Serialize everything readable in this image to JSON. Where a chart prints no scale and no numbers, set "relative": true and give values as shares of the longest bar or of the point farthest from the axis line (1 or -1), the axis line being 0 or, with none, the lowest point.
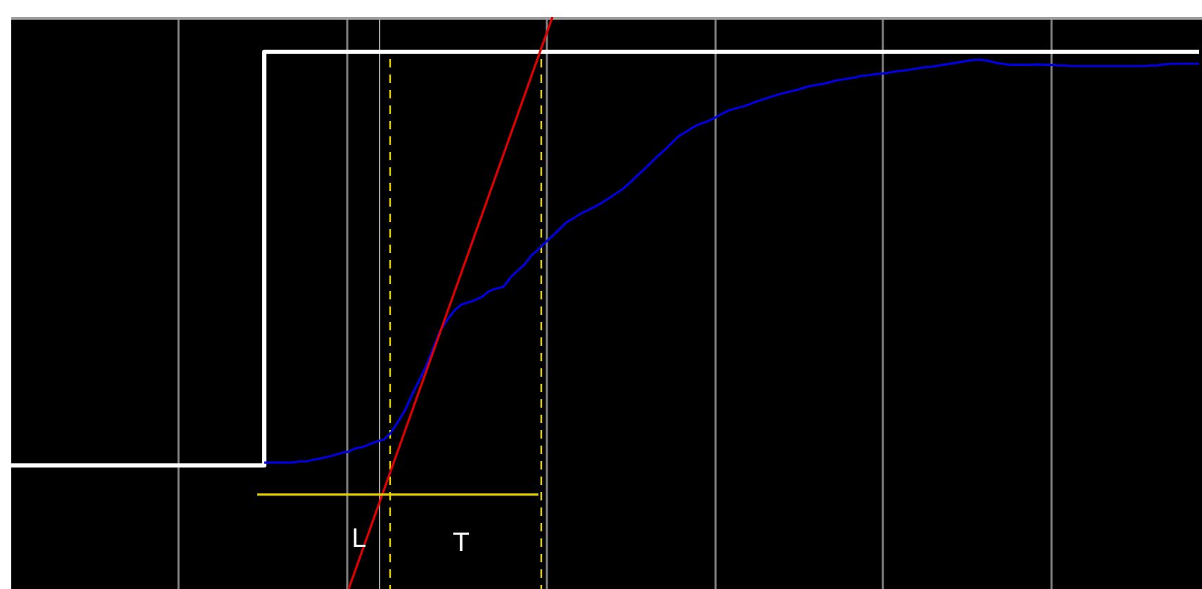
{
  "chart_data": {
    "type": "line",
    "relative": true,
    "marker": "none",
    "categories": [
      null,
      null,
      null,
      null,
      null,
      null,
      null,
      null,
      null,
      null,
      null,
      null,
      null,
      null,
      null,
      null,
      null,
      null,
      null,
      null,
      null,
      null,
      null,
      null,
      null,
      null,
      null,
      null,
      null,
      null,
      null,
      null,
      null,
      null,
      null,
      null,
      null,
      null,
      null,
      null,
      null,
      null,
      null,
      null,
      null,
      null,
      null,
      null,
      null,
      null,
      null,
      null,
      null,
      null,
      null,
      null,
      null,
      null,
      null,
      null,
      null,
      null,
      null,
      null,
      null,
      null,
      null,
      null,
      null,
      null,
      null,
      null,
      null,
      null,
      null,
      null,
      null,
      null,
      null,
      null,
      null,
      null,
      null,
      null,
      null,
      null,
      null,
      null,
      null,
      null,
      null,
      null,
      null,
      null,
      null,
      null,
      null,
      null,
      null,
      null,
      null,
      null,
      null,
      null,
      null,
      null,
      null,
      null,
      null,
      null,
      null,
      null,
      null,
      null,
      null,
      null,
      null,
      null,
      null,
      null,
      null,
      null,
      null,
      null,
      null,
      null,
      null,
      null,
      null,
      null,
      null,
      null,
      null,
      null,
      null,
      null,
      null,
      null,
      null,
      null,
      null,
      null,
      null,
      null,
      null,
      null,
      null,
      null,
      null,
      null,
      null,
      null,
      null,
      null,
      null,
      null,
      null,
      null,
      null,
      null,
      null,
      null,
      null,
      null,
      null,
      null,
      null,
      null,
      null,
      null
    ],
    "series": [
      {
        "type": "step",
        "color": "#ffffff",
        "values": [
          0.216,
          0.216,
          0.216,
          0.216,
          0.216,
          0.216,
          0.216,
          0.216,
          0.216,
          0.216,
          0.216,
          0.216,
          0.216,
          0.216,
          0.216,
          0.216,
          0.216,
          0.216,
          0.216,
          0.216,
          0.216,
          0.216,
          0.216,
          0.216,
          0.216,
          0.216,
          0.216,
          0.216,
          0.216,
          0.216,
          0.216,
          0.216,
          0.216,
          0.216,
          0.216,
          0.216,
          0.939,
          0.939,
          0.939,
          0.939,
          0.939,
          0.939,
          0.939,
          0.939,
          0.939,
          0.939,
          0.939,
          0.939,
          0.939,
          0.939,
          0.939,
          0.939,
          0.939,
          0.939,
          0.939,
          0.939,
          0.939,
          0.939,
          0.939,
          0.939,
          0.939,
          0.939,
          0.939,
          0.939,
          0.939,
          0.939,
          0.939,
          0.939,
          0.939,
          0.939,
          0.939,
          0.939,
          0.939,
          0.939,
          0.939,
          0.939,
          0.939,
          0.939,
          0.939,
          0.939,
          0.939,
          0.939,
          0.939,
          0.939,
          0.939,
          0.939,
          0.939,
          0.939,
          0.939,
          0.939,
          0.939,
          0.939,
          0.939,
          0.939,
          0.939,
          0.939,
          0.939,
          0.939,
          0.939,
          0.939,
          0.939,
          0.939,
          0.939,
          0.939,
          0.939,
          0.939,
          0.939,
          0.939,
          0.939,
          0.939,
          0.939,
          0.939,
          0.939,
          0.939,
          0.939,
          0.939,
          0.939,
          0.939,
          0.939,
          0.939,
          0.939,
          0.939,
          0.939,
          0.939,
          0.939,
          0.939,
          0.939,
          0.939,
          0.939,
          0.939,
          0.939,
          0.939,
          0.939,
          0.939,
          0.939,
          0.939,
          0.939,
          0.939,
          0.939,
          0.939,
          0.939,
          0.939,
          0.939,
          0.939,
          0.939,
          0.939,
          0.939,
          0.939,
          0.939,
          0.939,
          0.939,
          0.939,
          0.939,
          0.939,
          0.939,
          0.939,
          0.939,
          0.939,
          0.939,
          0.939,
          0.939,
          0.939,
          0.939,
          0.939,
          0.939,
          0.939,
          0.939,
          0.939,
          0.939,
          0.939
        ]
      },
      {
        "color": "#0000e0",
        "values": [
          null,
          null,
          null,
          null,
          null,
          null,
          null,
          null,
          null,
          null,
          null,
          null,
          null,
          null,
          null,
          null,
          null,
          null,
          null,
          null,
          null,
          null,
          null,
          null,
          null,
          null,
          null,
          null,
          null,
          null,
          null,
          null,
          null,
          null,
          null,
          null,
          0.221,
          0.221,
          0.221,
          0.221,
          0.221,
          0.223,
          0.223,
          0.226,
          0.228,
          0.231,
          0.234,
          0.238,
          0.24,
          0.246,
          0.248,
          0.253,
          0.258,
          0.261,
          0.273,
          0.292,
          0.312,
          0.339,
          0.364,
          0.389,
          0.42,
          0.451,
          0.47,
          0.486,
          0.497,
          0.501,
          0.505,
          0.511,
          0.521,
          0.525,
          0.528,
          0.544,
          0.556,
          0.567,
          0.583,
          0.594,
          0.606,
          0.617,
          0.629,
          0.641,
          0.648,
          0.656,
          0.662,
          0.668,
          0.675,
          0.683,
          0.691,
          0.699,
          0.71,
          0.722,
          0.733,
          0.745,
          0.757,
          0.768,
          0.78,
          0.792,
          0.799,
          0.807,
          0.813,
          0.817,
          0.823,
          0.83,
          0.836,
          0.84,
          0.843,
          0.847,
          0.852,
          0.856,
          0.86,
          0.864,
          0.867,
          0.87,
          0.873,
          0.877,
          0.88,
          0.882,
          0.884,
          0.888,
          0.89,
          0.892,
          0.894,
          0.897,
          0.898,
          0.9,
          0.901,
          0.903,
          0.905,
          0.906,
          0.908,
          0.91,
          0.912,
          0.913,
          0.915,
          0.917,
          0.919,
          0.921,
          0.923,
          0.925,
          0.925,
          0.923,
          0.92,
          0.918,
          0.916,
          0.916,
          0.916,
          0.916,
          0.917,
          0.916,
          0.916,
          0.915,
          0.915,
          0.914,
          0.914,
          0.914,
          0.914,
          0.914,
          0.914,
          0.914,
          0.914,
          0.914,
          0.914,
          0.914,
          0.915,
          0.915,
          0.917,
          0.918,
          0.918,
          0.918,
          0.918,
          0.918
        ]
      },
      {
        "color": "#e00000",
        "values": [
          null,
          null,
          null,
          null,
          null,
          null,
          null,
          null,
          null,
          null,
          null,
          null,
          null,
          null,
          null,
          null,
          null,
          null,
          null,
          null,
          null,
          null,
          null,
          null,
          null,
          null,
          null,
          null,
          null,
          null,
          null,
          null,
          null,
          null,
          null,
          null,
          null,
          null,
          null,
          null,
          null,
          null,
          null,
          null,
          null,
          null,
          null,
          null,
          0,
          null,
          null,
          null,
          null,
          null,
          null,
          null,
          null,
          null,
          null,
          null,
          null,
          null,
          null,
          null,
          null,
          null,
          null,
          null,
          null,
          null,
          null,
          null,
          null,
          null,
          null,
          null,
          null,
          1,
          null,
          null,
          null,
          null,
          null,
          null,
          null,
          null,
          null,
          null,
          null,
          null,
          null,
          null,
          null,
          null,
          null,
          null,
          null,
          null,
          null,
          null,
          null,
          null,
          null,
          null,
          null,
          null,
          null,
          null,
          null,
          null,
          null,
          null,
          null,
          null,
          null,
          null,
          null,
          null,
          null,
          null,
          null,
          null,
          null,
          null,
          null,
          null,
          null,
          null,
          null,
          null,
          null,
          null,
          null,
          null,
          null,
          null,
          null,
          null,
          null,
          null,
          null,
          null,
          null,
          null,
          null,
          null,
          null,
          null,
          null,
          null,
          null,
          null,
          null,
          null,
          null,
          null,
          null,
          null,
          null,
          null,
          null,
          null,
          null,
          null,
          null,
          null,
          null,
          null,
          null,
          null
        ]
      },
      {
        "color": "#e6d200",
        "values": [
          null,
          null,
          null,
          null,
          null,
          null,
          null,
          null,
          null,
          null,
          null,
          null,
          null,
          null,
          null,
          null,
          null,
          null,
          null,
          null,
          null,
          null,
          null,
          null,
          null,
          null,
          null,
          null,
          null,
          null,
          null,
          null,
          null,
          null,
          null,
          0.165,
          0.165,
          0.165,
          0.165,
          0.165,
          0.165,
          0.165,
          0.165,
          0.165,
          0.165,
          0.165,
          0.165,
          0.165,
          0.165,
          0.165,
          0.165,
          0.165,
          0.165,
          0.165,
          0.165,
          0.165,
          0.165,
          0.165,
          0.165,
          0.165,
          0.165,
          0.165,
          0.165,
          0.165,
          0.165,
          0.165,
          0.165,
          0.165,
          0.165,
          0.165,
          0.165,
          0.165,
          0.165,
          0.165,
          0.165,
          0.165,
          null,
          null,
          null,
          null,
          null,
          null,
          null,
          null,
          null,
          null,
          null,
          null,
          null,
          null,
          null,
          null,
          null,
          null,
          null,
          null,
          null,
          null,
          null,
          null,
          null,
          null,
          null,
          null,
          null,
          null,
          null,
          null,
          null,
          null,
          null,
          null,
          null,
          null,
          null,
          null,
          null,
          null,
          null,
          null,
          null,
          null,
          null,
          null,
          null,
          null,
          null,
          null,
          null,
          null,
          null,
          null,
          null,
          null,
          null,
          null,
          null,
          null,
          null,
          null,
          null,
          null,
          null,
          null,
          null,
          null,
          null,
          null,
          null,
          null,
          null,
          null,
          null,
          null,
          null,
          null,
          null,
          null,
          null,
          null,
          null,
          null,
          null,
          null,
          null,
          null,
          null,
          null,
          null,
          null
        ]
      }
    ],
    "annotations": [
      "L",
      "T"
    ]
  }
}
